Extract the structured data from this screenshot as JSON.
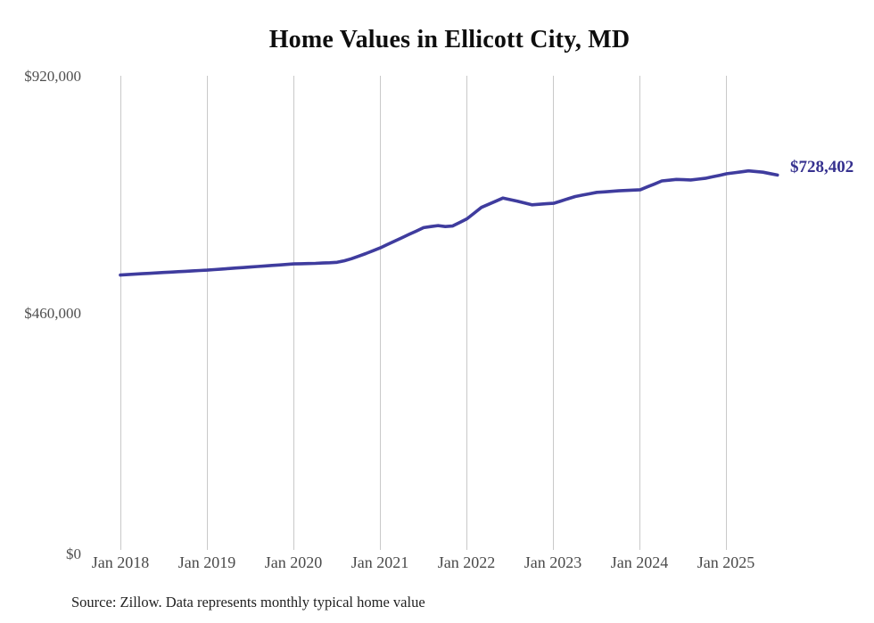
{
  "chart": {
    "title": "Home Values in Ellicott City, MD",
    "source": "Source: Zillow. Data represents monthly typical home value"
  },
  "chart_data": {
    "type": "line",
    "title": "Home Values in Ellicott City, MD",
    "xlabel": "",
    "ylabel": "",
    "legend": "none",
    "grid": "vertical-yearly-gridlines",
    "x_frequency": "monthly",
    "x_range": [
      "Jan 2018",
      "Aug 2025"
    ],
    "ylim": [
      0,
      920000
    ],
    "ytick_values": [
      0,
      460000,
      920000
    ],
    "ytick_labels": [
      "$0",
      "$460,000",
      "$920,000"
    ],
    "xtick_labels": [
      "Jan 2018",
      "Jan 2019",
      "Jan 2020",
      "Jan 2021",
      "Jan 2022",
      "Jan 2023",
      "Jan 2024",
      "Jan 2025"
    ],
    "end_label": "$728,402",
    "latest_value": 728402,
    "line_color": "#3F3C9E",
    "end_label_color": "#36318F",
    "x_months": [
      "2018-01",
      "2018-02",
      "2018-03",
      "2018-04",
      "2018-05",
      "2018-06",
      "2018-07",
      "2018-08",
      "2018-09",
      "2018-10",
      "2018-11",
      "2018-12",
      "2019-01",
      "2019-02",
      "2019-03",
      "2019-04",
      "2019-05",
      "2019-06",
      "2019-07",
      "2019-08",
      "2019-09",
      "2019-10",
      "2019-11",
      "2019-12",
      "2020-01",
      "2020-02",
      "2020-03",
      "2020-04",
      "2020-05",
      "2020-06",
      "2020-07",
      "2020-08",
      "2020-09",
      "2020-10",
      "2020-11",
      "2020-12",
      "2021-01",
      "2021-02",
      "2021-03",
      "2021-04",
      "2021-05",
      "2021-06",
      "2021-07",
      "2021-08",
      "2021-09",
      "2021-10",
      "2021-11",
      "2021-12",
      "2022-01",
      "2022-02",
      "2022-03",
      "2022-04",
      "2022-05",
      "2022-06",
      "2022-07",
      "2022-08",
      "2022-09",
      "2022-10",
      "2022-11",
      "2022-12",
      "2023-01",
      "2023-02",
      "2023-03",
      "2023-04",
      "2023-05",
      "2023-06",
      "2023-07",
      "2023-08",
      "2023-09",
      "2023-10",
      "2023-11",
      "2023-12",
      "2024-01",
      "2024-02",
      "2024-03",
      "2024-04",
      "2024-05",
      "2024-06",
      "2024-07",
      "2024-08",
      "2024-09",
      "2024-10",
      "2024-11",
      "2024-12",
      "2025-01",
      "2025-02",
      "2025-03",
      "2025-04",
      "2025-05",
      "2025-06",
      "2025-07",
      "2025-08"
    ],
    "values": [
      535500,
      536300,
      537200,
      538000,
      538800,
      539700,
      540500,
      541250,
      542000,
      542750,
      543500,
      544250,
      545000,
      546000,
      547000,
      548000,
      549000,
      550000,
      551000,
      552000,
      553000,
      554000,
      555000,
      556000,
      557000,
      557300,
      557700,
      558000,
      558700,
      559300,
      560000,
      563000,
      567000,
      572000,
      577000,
      582500,
      588000,
      594500,
      601000,
      607500,
      614000,
      620500,
      627000,
      629000,
      631000,
      629000,
      630000,
      637000,
      644000,
      655000,
      666000,
      672000,
      678000,
      684000,
      681000,
      678000,
      674500,
      671000,
      672000,
      673000,
      674000,
      678300,
      682700,
      687000,
      689700,
      692300,
      695000,
      696000,
      697000,
      698000,
      698700,
      699300,
      700000,
      705700,
      711300,
      717000,
      718500,
      720000,
      719500,
      719000,
      720500,
      722000,
      725000,
      728000,
      731000,
      732800,
      734700,
      736500,
      735250,
      734000,
      731200,
      728402
    ]
  }
}
